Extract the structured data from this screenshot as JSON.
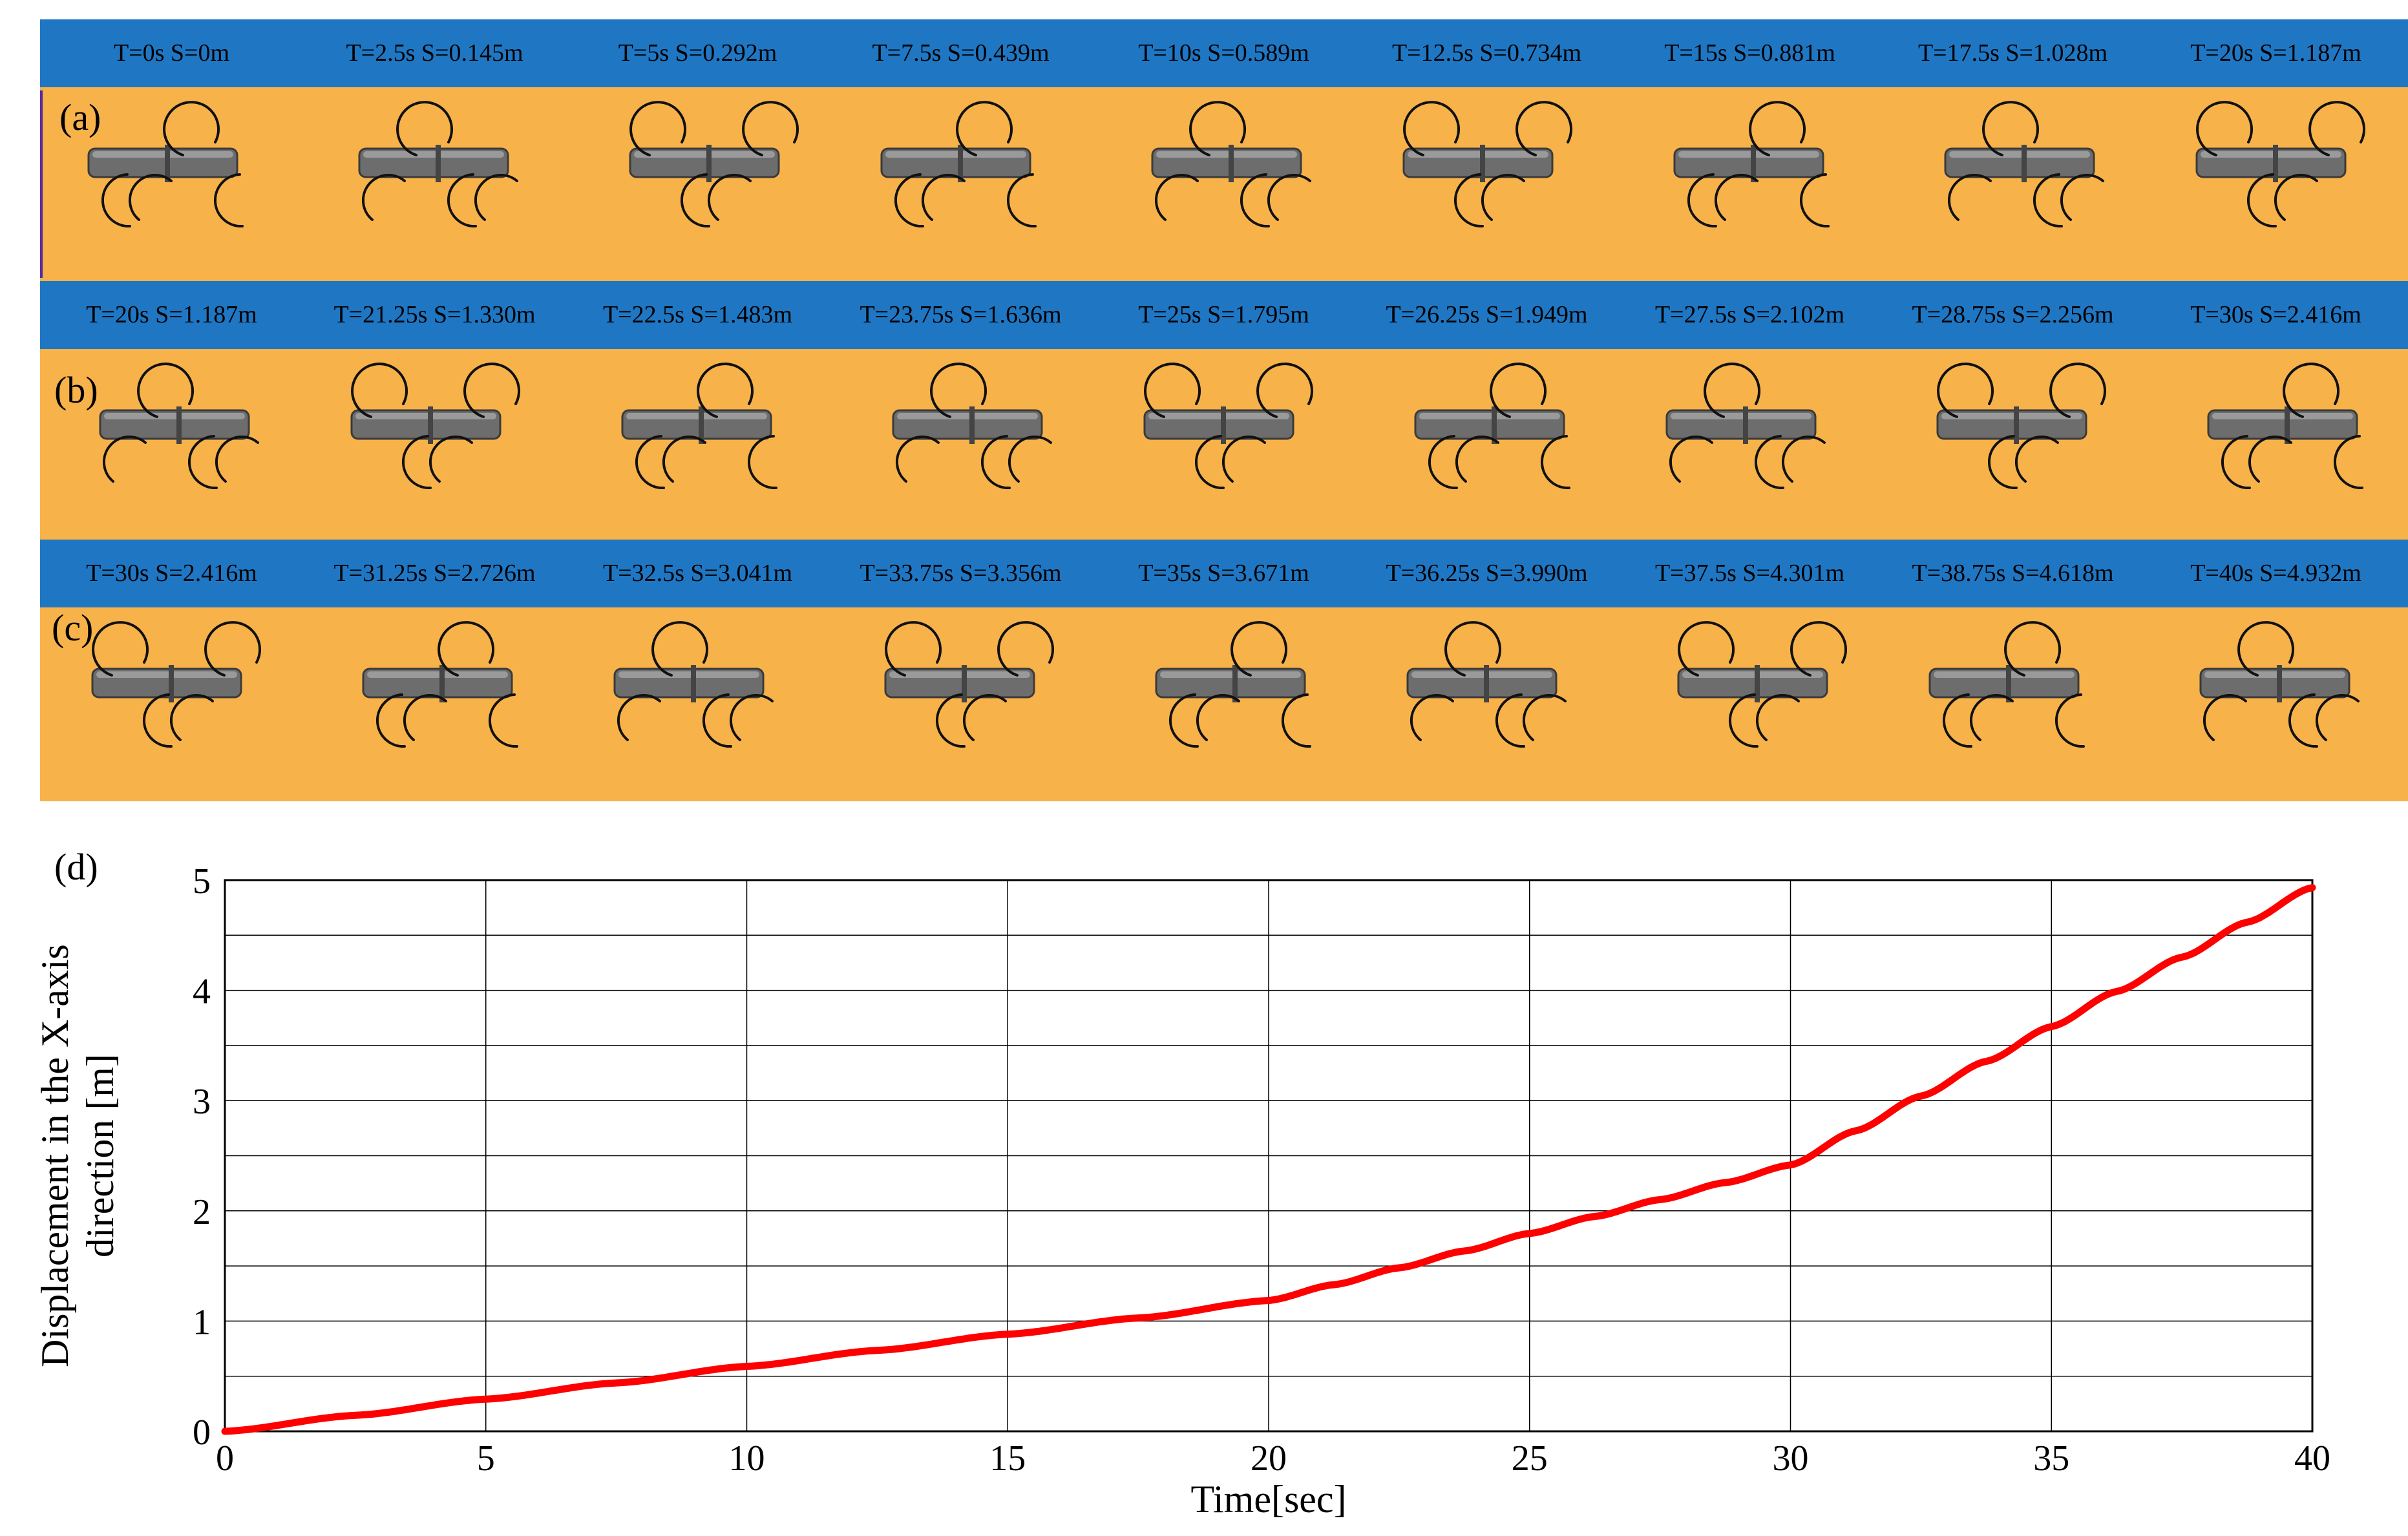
{
  "panels": [
    {
      "letter": "(a)",
      "labels": [
        "T=0s S=0m",
        "T=2.5s S=0.145m",
        "T=5s S=0.292m",
        "T=7.5s S=0.439m",
        "T=10s S=0.589m",
        "T=12.5s S=0.734m",
        "T=15s S=0.881m",
        "T=17.5s S=1.028m",
        "T=20s S=1.187m"
      ]
    },
    {
      "letter": "(b)",
      "labels": [
        "T=20s S=1.187m",
        "T=21.25s S=1.330m",
        "T=22.5s S=1.483m",
        "T=23.75s S=1.636m",
        "T=25s S=1.795m",
        "T=26.25s S=1.949m",
        "T=27.5s S=2.102m",
        "T=28.75s S=2.256m",
        "T=30s S=2.416m"
      ]
    },
    {
      "letter": "(c)",
      "labels": [
        "T=30s S=2.416m",
        "T=31.25s S=2.726m",
        "T=32.5s S=3.041m",
        "T=33.75s S=3.356m",
        "T=35s S=3.671m",
        "T=36.25s S=3.990m",
        "T=37.5s S=4.301m",
        "T=38.75s S=4.618m",
        "T=40s S=4.932m"
      ]
    }
  ],
  "colors": {
    "header": "#1f77c4",
    "body": "#f7b24a",
    "line": "#ff0000"
  },
  "chart_data": {
    "type": "line",
    "letter": "(d)",
    "xlabel": "Time[sec]",
    "ylabel_line1": "Displacement in the X-axis",
    "ylabel_line2": "direction [m]",
    "xlim": [
      0,
      40
    ],
    "ylim": [
      0,
      5
    ],
    "xticks": [
      0,
      5,
      10,
      15,
      20,
      25,
      30,
      35,
      40
    ],
    "yticks": [
      0,
      1,
      2,
      3,
      4,
      5
    ],
    "grid": true,
    "series": [
      {
        "color": "#ff0000",
        "x": [
          0,
          2.5,
          5,
          7.5,
          10,
          12.5,
          15,
          17.5,
          20,
          21.25,
          22.5,
          23.75,
          25,
          26.25,
          27.5,
          28.75,
          30,
          31.25,
          32.5,
          33.75,
          35,
          36.25,
          37.5,
          38.75,
          40
        ],
        "y": [
          0,
          0.145,
          0.292,
          0.439,
          0.589,
          0.734,
          0.881,
          1.028,
          1.187,
          1.33,
          1.483,
          1.636,
          1.795,
          1.949,
          2.102,
          2.256,
          2.416,
          2.726,
          3.041,
          3.356,
          3.671,
          3.99,
          4.301,
          4.618,
          4.932
        ]
      }
    ]
  }
}
